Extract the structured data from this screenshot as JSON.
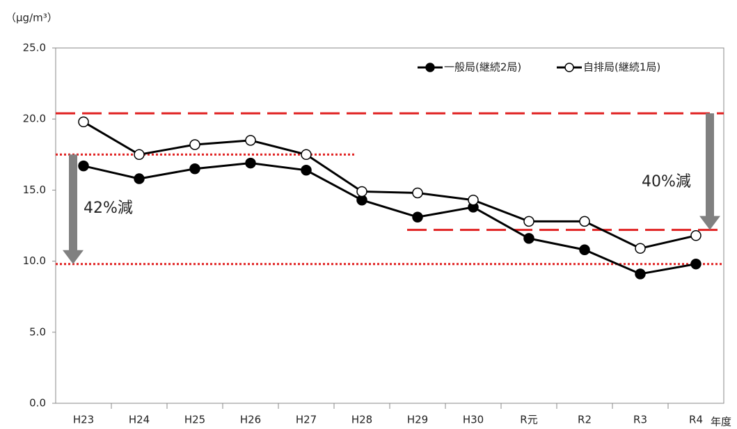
{
  "chart_data": {
    "type": "line",
    "y_unit_label": "（μg/m³）",
    "x_label": "年度",
    "categories": [
      "H23",
      "H24",
      "H25",
      "H26",
      "H27",
      "H28",
      "H29",
      "H30",
      "R元",
      "R2",
      "R3",
      "R4"
    ],
    "series": [
      {
        "name": "一般局(継続2局)",
        "color": "#000000",
        "marker": "filled",
        "values": [
          16.7,
          15.8,
          16.5,
          16.9,
          16.4,
          14.3,
          13.1,
          13.8,
          11.6,
          10.8,
          9.1,
          9.8
        ]
      },
      {
        "name": "自排局(継続1局)",
        "color": "#000000",
        "marker": "open",
        "values": [
          19.8,
          17.5,
          18.2,
          18.5,
          17.5,
          14.9,
          14.8,
          14.3,
          12.8,
          12.8,
          10.9,
          11.8
        ]
      }
    ],
    "reference_lines": [
      {
        "value": 20.4,
        "style": "dashed",
        "color": "#e02020"
      },
      {
        "value": 12.2,
        "style": "dashed",
        "color": "#e02020"
      },
      {
        "value": 17.5,
        "style": "dotted",
        "color": "#e02020"
      },
      {
        "value": 9.8,
        "style": "dotted",
        "color": "#e02020"
      }
    ],
    "annotations": [
      "42%減",
      "40%減"
    ],
    "ylim": [
      0,
      25
    ],
    "yticks": [
      {
        "value": 0,
        "label": "0.0"
      },
      {
        "value": 5,
        "label": "5.0"
      },
      {
        "value": 10,
        "label": "10.0"
      },
      {
        "value": 15,
        "label": "15.0"
      },
      {
        "value": 20,
        "label": "20.0"
      },
      {
        "value": 25,
        "label": "25.0"
      }
    ],
    "legend": "top-right",
    "grid": false
  }
}
